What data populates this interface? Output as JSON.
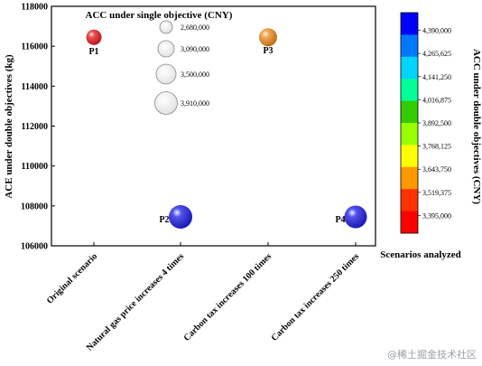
{
  "chart_data": {
    "type": "scatter",
    "title": "",
    "ylabel": "ACE under double objectives (kg)",
    "xlabel": "Scenarios analyzed",
    "ylim": [
      106000,
      118000
    ],
    "yticks": [
      "106000",
      "108000",
      "110000",
      "112000",
      "114000",
      "116000",
      "118000"
    ],
    "categories": [
      "Original scenario",
      "Natural gas price increases 4 times",
      "Carbon tax increases 100 times",
      "Carbon tax increases 250 times"
    ],
    "points": [
      {
        "label": "P1",
        "category_index": 0,
        "y": 116450,
        "color_value": 3395000,
        "color": "#e8171b"
      },
      {
        "label": "P2",
        "category_index": 1,
        "y": 107450,
        "color_value": 4390000,
        "color": "#1a1ae6"
      },
      {
        "label": "P3",
        "category_index": 2,
        "y": 116450,
        "color_value": 3580000,
        "color": "#f28b1a"
      },
      {
        "label": "P4",
        "category_index": 3,
        "y": 107450,
        "color_value": 4390000,
        "color": "#1a1ae6"
      }
    ],
    "size_legend": {
      "title": "ACC under single objective (CNY)",
      "entries": [
        "2,680,000",
        "3,090,000",
        "3,500,000",
        "3,910,000"
      ]
    },
    "colorbar": {
      "label": "ACC under double objectives (CNY)",
      "range": [
        3395000,
        4390000
      ],
      "ticks": [
        "4,390,000",
        "4,265,625",
        "4,141,250",
        "4,016,875",
        "3,892,500",
        "3,768,125",
        "3,643,750",
        "3,519,375",
        "3,395,000"
      ],
      "colors": [
        "#0000ff",
        "#0077ff",
        "#00d4ff",
        "#00ff99",
        "#33cc00",
        "#99ff00",
        "#ffff00",
        "#ff9900",
        "#ff3300",
        "#ff0000"
      ]
    }
  },
  "watermark": "@稀土掘金技术社区"
}
